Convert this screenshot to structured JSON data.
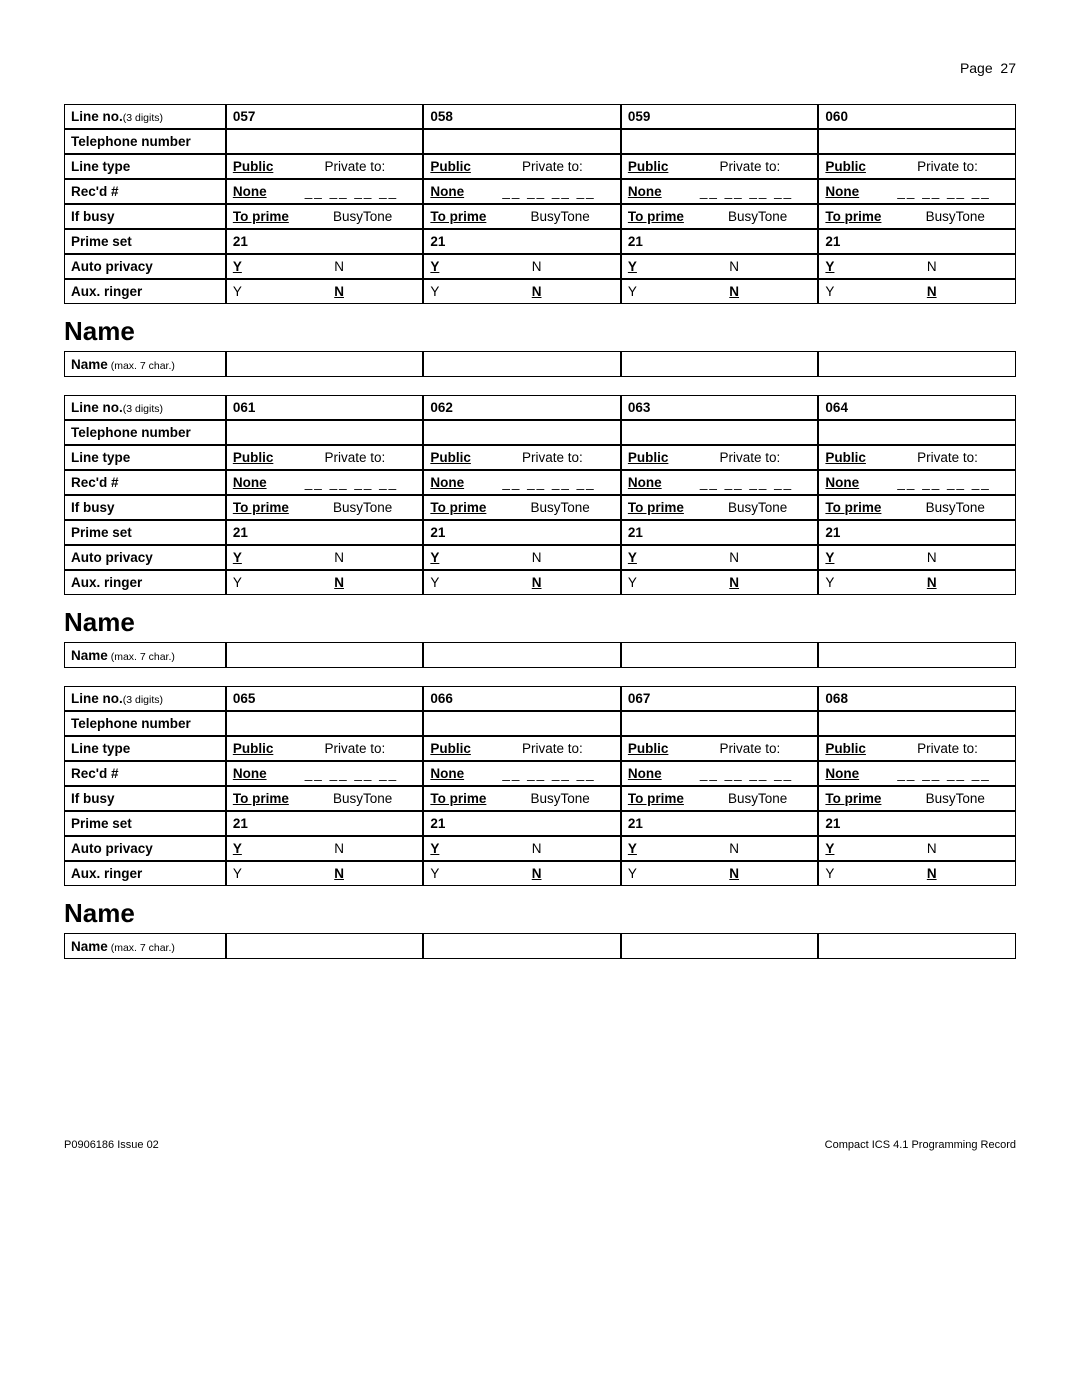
{
  "page": {
    "label": "Page",
    "number": "27"
  },
  "rowLabels": {
    "lineNo": "Line no.",
    "lineNoSub": "(3 digits)",
    "tel": "Telephone number",
    "lineType": "Line type",
    "recd": "Rec'd #",
    "ifBusy": "If busy",
    "primeSet": "Prime set",
    "autoPriv": "Auto privacy",
    "auxRinger": "Aux. ringer"
  },
  "cellText": {
    "public": "Public",
    "privateTo": "Private to:",
    "none": "None",
    "dashes": "__ __ __ __",
    "toPrime": "To prime",
    "busyTone": "BusyTone",
    "primeSetVal": "21",
    "Y": "Y",
    "N": "N"
  },
  "sectionTitle": "Name",
  "nameRow": {
    "label": "Name",
    "sub": " (max. 7 char.)"
  },
  "blocks": [
    {
      "lines": [
        "057",
        "058",
        "059",
        "060"
      ]
    },
    {
      "lines": [
        "061",
        "062",
        "063",
        "064"
      ]
    },
    {
      "lines": [
        "065",
        "066",
        "067",
        "068"
      ]
    }
  ],
  "footer": {
    "left": "P0906186 Issue 02",
    "right": "Compact ICS 4.1 Programming Record"
  }
}
